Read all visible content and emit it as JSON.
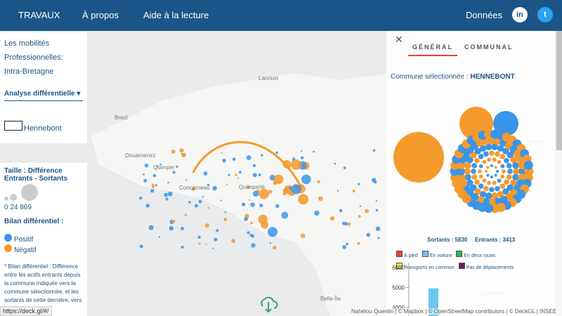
{
  "nav": {
    "brand": "TRAVAUX",
    "links": [
      "À propos",
      "Aide à la lecture"
    ],
    "data_link": "Données"
  },
  "left_panel": {
    "title_lines": [
      "Les mobilités",
      "Professionnelles:",
      "Intra-Bretagne"
    ],
    "dropdown": "Analyse différentielle",
    "commune": "Hennebont"
  },
  "legend_panel": {
    "size_title": "Taille : Différence Entrants - Sortants",
    "size_values": "0 24 869",
    "bilan_title": "Bilan différentiel :",
    "positive": "Positif",
    "negative": "Négatif",
    "note": "* Bilan différentiel : Différence entre les actifs entrants depuis la commune indiquée vers la commune sélectionnée, et les sortants de cette dernière, vers la première."
  },
  "map_labels": [
    "Brest",
    "Quimper",
    "Concarneau",
    "Quimperlé",
    "Lannion",
    "Douarnenez",
    "Belle-Île",
    "Rennes",
    "Guérande",
    "Jersey"
  ],
  "right_panel": {
    "tabs": [
      "GÉNÉRAL",
      "COMMUNAL"
    ],
    "selected_label": "Commune sélectionnée :",
    "selected": "HENNEBONT",
    "sortants": "Sortants : 5830",
    "entrants": "Entrants : 3413",
    "modes": [
      {
        "name": "À pied",
        "color": "#e8413c"
      },
      {
        "name": "En voiture",
        "color": "#6cc7f0"
      },
      {
        "name": "En deux roues",
        "color": "#34b35a"
      },
      {
        "name": "Transports en commun",
        "color": "#f5e63a"
      },
      {
        "name": "Pas de déplacements",
        "color": "#6b1f5c"
      }
    ],
    "chart_data": {
      "type": "bar",
      "values": [
        4960
      ],
      "color": "#6cc7f0",
      "ylim": [
        3570,
        6250
      ],
      "yticks": [
        4000,
        5000,
        6000
      ]
    }
  },
  "status_url": "https://deck.gl/#/",
  "attribution": "Nahélou Quentin | © Mapbox | © OpenStreetMap contributors | © DeckGL | INSEE"
}
